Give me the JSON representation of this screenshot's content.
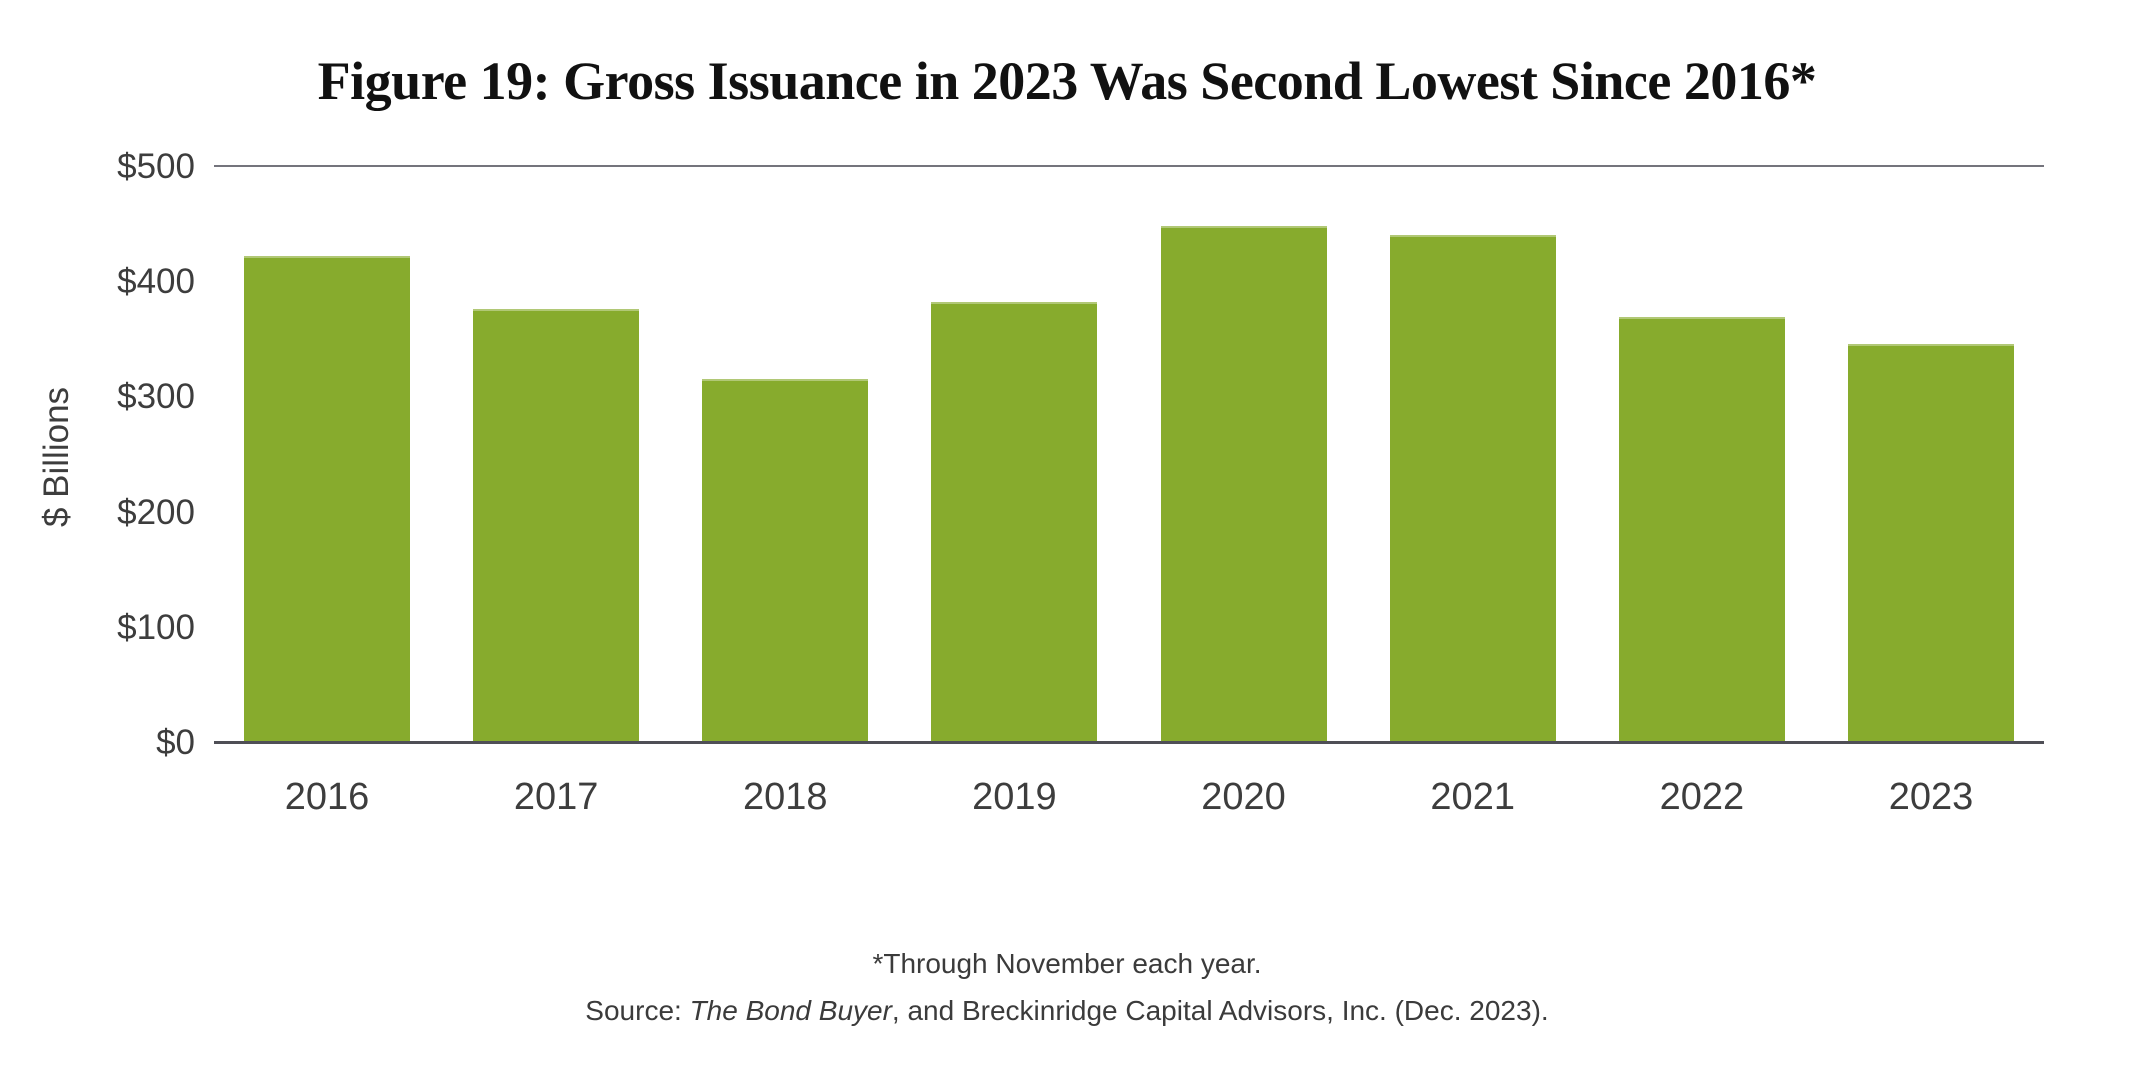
{
  "figure": {
    "title": "Figure 19: Gross Issuance in 2023 Was Second Lowest Since 2016*",
    "footnote_line1": "*Through November each year.",
    "source_prefix": "Source: ",
    "source_italic": "The Bond Buyer",
    "source_suffix": ", and Breckinridge Capital Advisors, Inc. (Dec. 2023)."
  },
  "chart_data": {
    "type": "bar",
    "title": "Figure 19: Gross Issuance in 2023 Was Second Lowest Since 2016*",
    "categories": [
      "2016",
      "2017",
      "2018",
      "2019",
      "2020",
      "2021",
      "2022",
      "2023"
    ],
    "values": [
      423,
      377,
      316,
      383,
      449,
      441,
      370,
      346
    ],
    "units": "$ Billions",
    "xlabel": "",
    "ylabel": "$ Billions",
    "ylim": [
      0,
      500
    ],
    "yticks": [
      0,
      100,
      200,
      300,
      400,
      500
    ],
    "ytick_labels": [
      "$0",
      "$100",
      "$200",
      "$300",
      "$400",
      "$500"
    ],
    "bar_color": "#87AB2D",
    "gridlines": "single horizontal rule at y=500 (top) and baseline at y=0",
    "legend": "none",
    "annotations": [
      "*Through November each year.",
      "Source: The Bond Buyer, and Breckinridge Capital Advisors, Inc. (Dec. 2023)."
    ]
  },
  "colors": {
    "bar": "#87AB2D",
    "axis_line": "#4f4f56",
    "top_gridline": "#74747c",
    "tick_text": "#3d3d3d",
    "title_text": "#111111",
    "footnote_text": "#3b3b3b",
    "background": "#ffffff"
  }
}
